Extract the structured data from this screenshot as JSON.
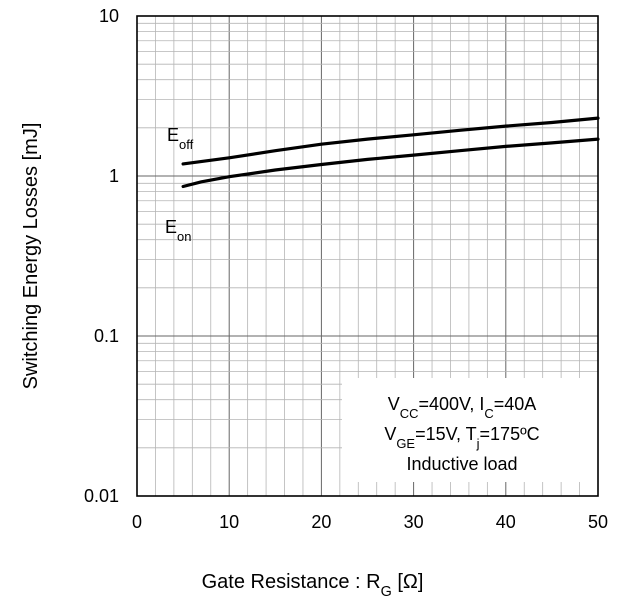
{
  "chart_data": {
    "type": "line",
    "title": "",
    "x_scale": "linear",
    "y_scale": "log",
    "xlim": [
      0,
      50
    ],
    "ylim": [
      0.01,
      10
    ],
    "grid": true,
    "x_ticks": [
      0,
      10,
      20,
      30,
      40,
      50
    ],
    "x_tick_labels": [
      "0",
      "10",
      "20",
      "30",
      "40",
      "50"
    ],
    "y_ticks": [
      0.01,
      0.1,
      1,
      10
    ],
    "y_tick_labels": [
      "0.01",
      "0.1",
      "1",
      "10"
    ],
    "xlabel": {
      "main": "Gate Resistance : R",
      "sub": "G",
      "unit": "[Ω]"
    },
    "ylabel": "Switching Energy Losses [mJ]",
    "series": [
      {
        "name": {
          "main": "E",
          "sub": "off"
        },
        "x": [
          5,
          10,
          15,
          20,
          25,
          30,
          35,
          40,
          45,
          50
        ],
        "y": [
          1.19,
          1.3,
          1.44,
          1.58,
          1.7,
          1.81,
          1.93,
          2.05,
          2.16,
          2.3
        ]
      },
      {
        "name": {
          "main": "E",
          "sub": "on"
        },
        "x": [
          5,
          7,
          10,
          15,
          20,
          25,
          30,
          35,
          40,
          45,
          50
        ],
        "y": [
          0.86,
          0.92,
          0.99,
          1.09,
          1.18,
          1.27,
          1.35,
          1.44,
          1.53,
          1.61,
          1.7
        ]
      }
    ],
    "conditions": [
      [
        {
          "t": "V",
          "s": false
        },
        {
          "t": "CC",
          "s": true
        },
        {
          "t": "=400V, I",
          "s": false
        },
        {
          "t": "C",
          "s": true
        },
        {
          "t": "=40A",
          "s": false
        }
      ],
      [
        {
          "t": "V",
          "s": false
        },
        {
          "t": "GE",
          "s": true
        },
        {
          "t": "=15V, T",
          "s": false
        },
        {
          "t": "j",
          "s": true
        },
        {
          "t": "=175ºC",
          "s": false
        }
      ],
      [
        {
          "t": "Inductive load",
          "s": false
        }
      ]
    ]
  }
}
